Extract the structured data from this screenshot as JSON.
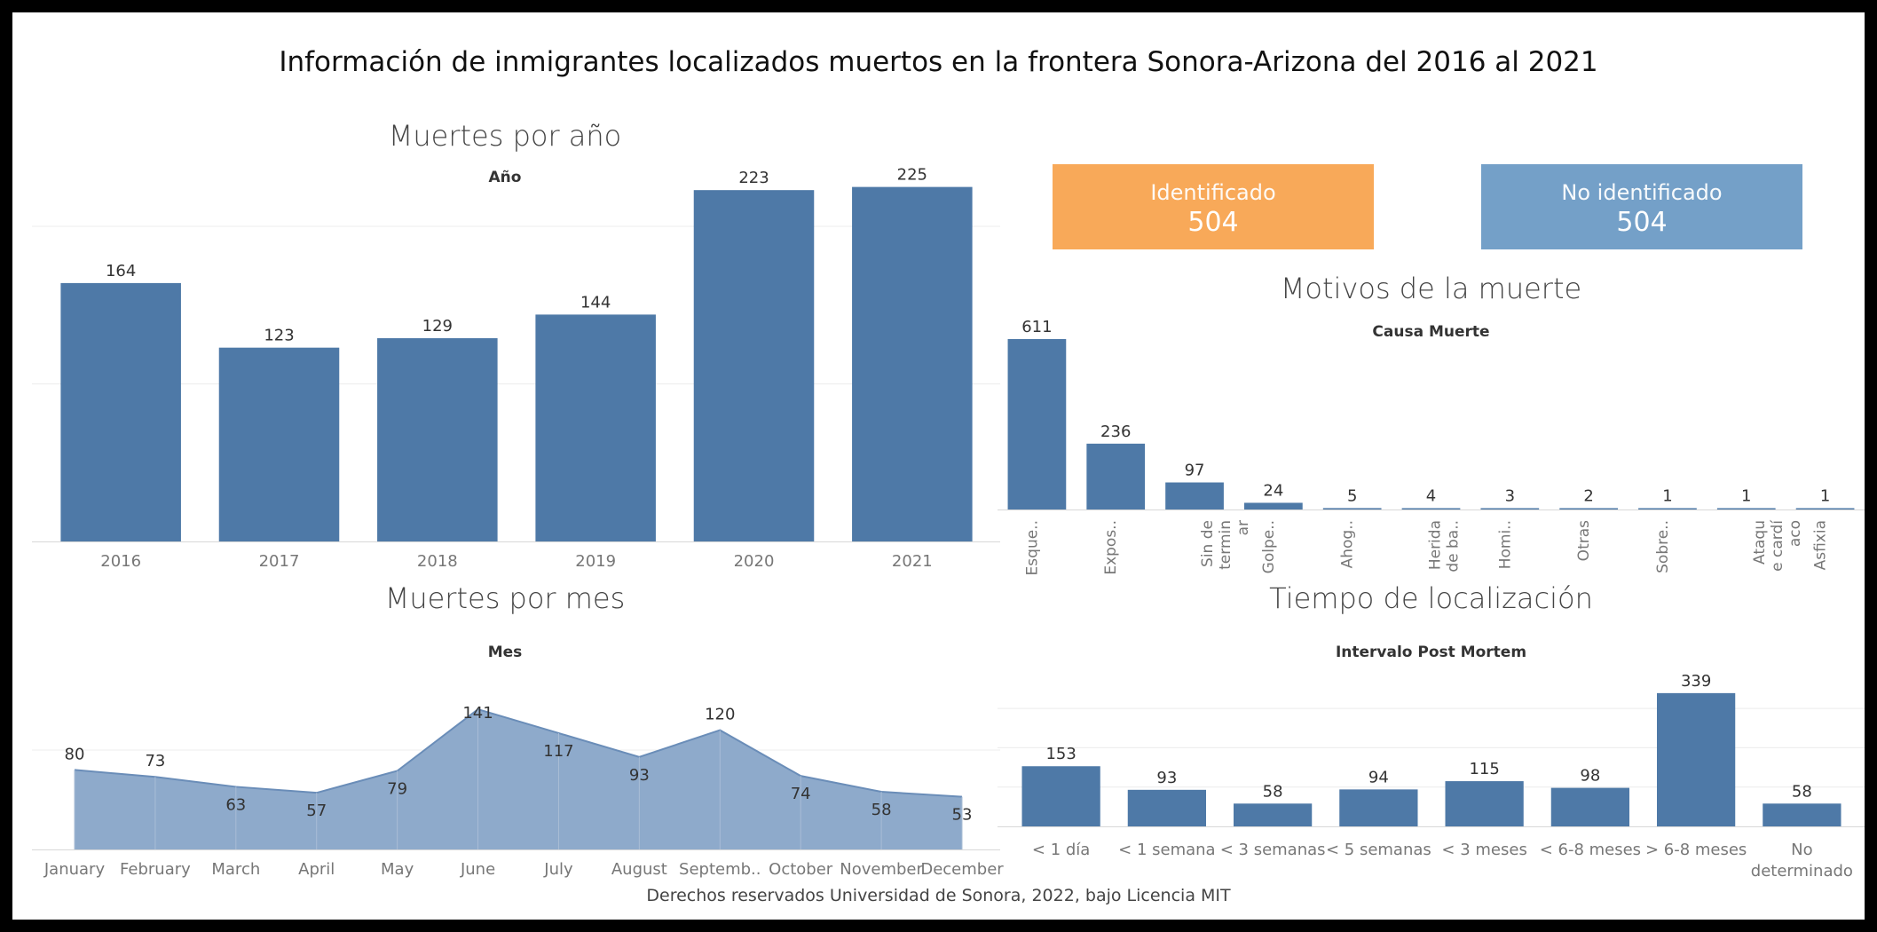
{
  "title": "Información de inmigrantes localizados muertos en la frontera Sonora-Arizona del 2016 al 2021",
  "footer": "Derechos reservados Universidad de Sonora, 2022, bajo Licencia MIT",
  "kpis": {
    "identified": {
      "label": "Identificado",
      "value": "504",
      "color": "#F8A959"
    },
    "unidentified": {
      "label": "No identificado",
      "value": "504",
      "color": "#74A0C8"
    }
  },
  "colors": {
    "bar": "#4E79A7",
    "area_fill": "#8EAACB",
    "area_line": "#6A8DB8",
    "grid": "#ececec"
  },
  "chart_data": [
    {
      "type": "bar",
      "title": "Muertes por año",
      "subtitle": "Año",
      "categories": [
        "2016",
        "2017",
        "2018",
        "2019",
        "2020",
        "2021"
      ],
      "values": [
        164,
        123,
        129,
        144,
        223,
        225
      ],
      "ylim": [
        0,
        240
      ],
      "grid": true
    },
    {
      "type": "bar",
      "title": "Motivos de la muerte",
      "subtitle": "Causa Muerte",
      "categories": [
        "Esque..",
        "Expos..",
        "Sin de termin ar",
        "Golpe..",
        "Ahog..",
        "Herida de ba..",
        "Homi..",
        "Otras",
        "Sobre..",
        "Ataqu e cardí aco",
        "Asfixia"
      ],
      "values": [
        611,
        236,
        97,
        24,
        5,
        4,
        3,
        2,
        1,
        1,
        1
      ],
      "ylim": [
        0,
        700
      ],
      "grid": false
    },
    {
      "type": "area",
      "title": "Muertes por mes",
      "subtitle": "Mes",
      "categories": [
        "January",
        "February",
        "March",
        "April",
        "May",
        "June",
        "July",
        "August",
        "Septemb..",
        "October",
        "November",
        "December"
      ],
      "values": [
        80,
        73,
        63,
        57,
        79,
        141,
        117,
        93,
        120,
        74,
        58,
        53
      ],
      "ylim": [
        0,
        150
      ],
      "grid": true
    },
    {
      "type": "bar",
      "title": "Tiempo de localización",
      "subtitle": "Intervalo Post Mortem",
      "categories": [
        "< 1 día",
        "< 1 semana",
        "< 3 semanas",
        "< 5 semanas",
        "< 3 meses",
        "< 6-8 meses",
        "> 6-8 meses",
        "No determinado"
      ],
      "values": [
        153,
        93,
        58,
        94,
        115,
        98,
        339,
        58
      ],
      "ylim": [
        0,
        350
      ],
      "grid": true
    }
  ]
}
